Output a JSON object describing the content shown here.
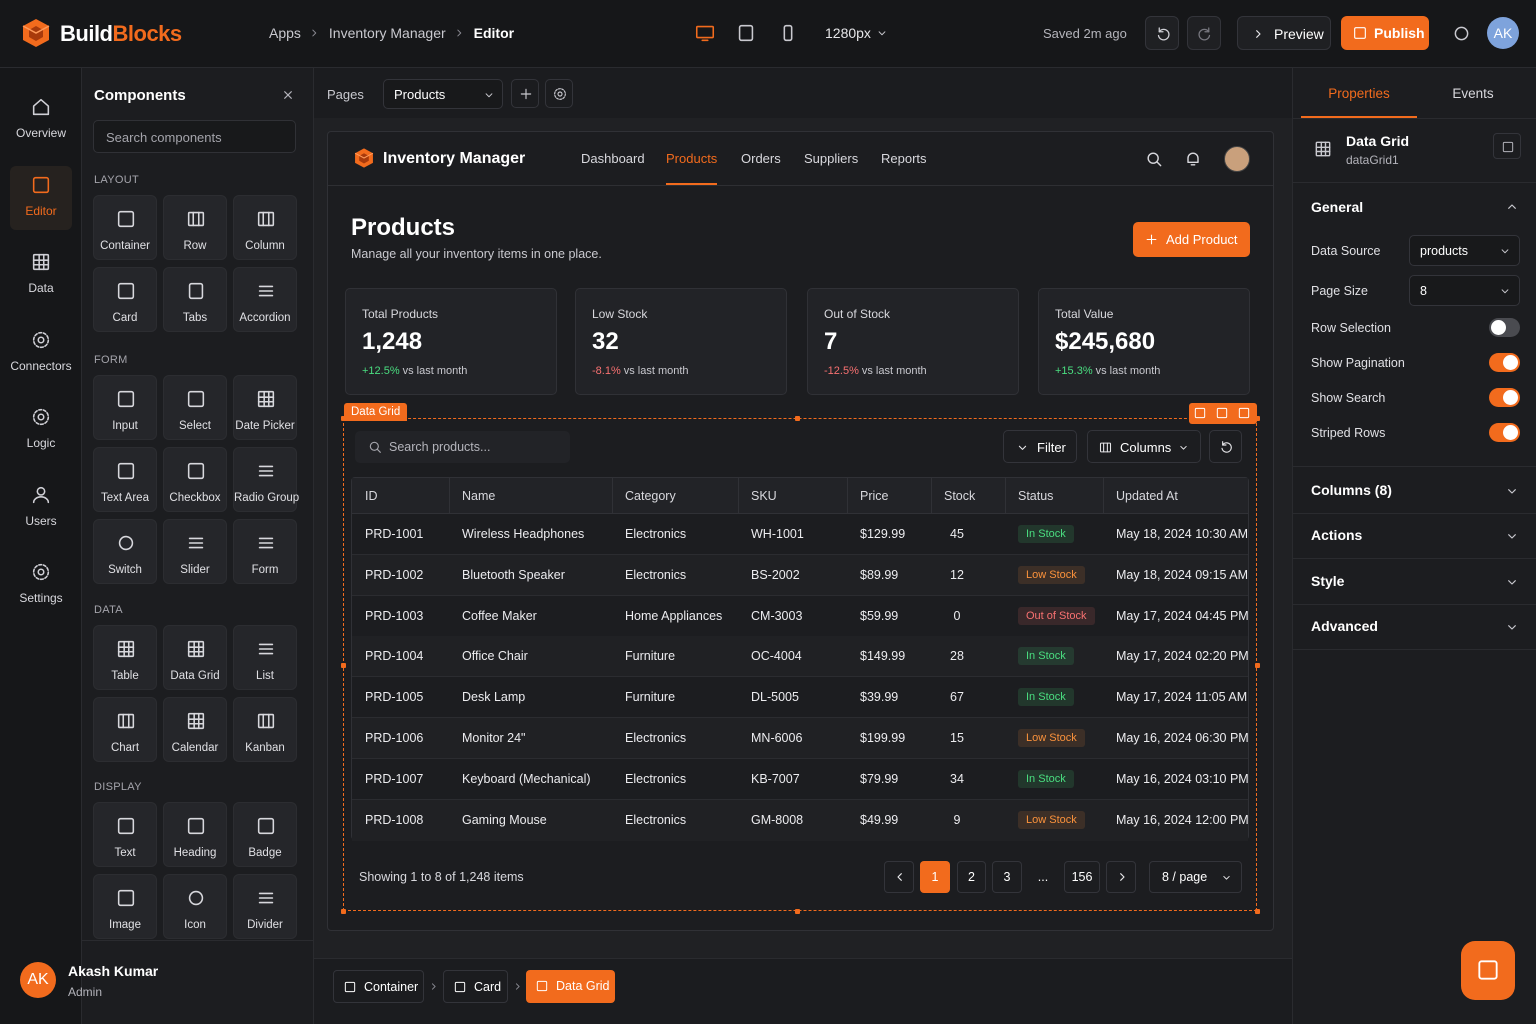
{
  "topbar": {
    "logo_a": "Build",
    "logo_b": "Blocks",
    "breadcrumb": [
      "Apps",
      "Inventory Manager",
      "Editor"
    ],
    "viewport": "1280px",
    "saved": "Saved 2m ago",
    "preview": "Preview",
    "publish": "Publish",
    "avatar": "AK"
  },
  "nav": [
    {
      "label": "Overview"
    },
    {
      "label": "Editor",
      "active": true
    },
    {
      "label": "Data"
    },
    {
      "label": "Connectors"
    },
    {
      "label": "Logic"
    },
    {
      "label": "Users"
    },
    {
      "label": "Settings"
    }
  ],
  "components": {
    "title": "Components",
    "search": "Search components",
    "groups": [
      {
        "name": "LAYOUT",
        "items": [
          "Container",
          "Row",
          "Column",
          "Card",
          "Tabs",
          "Accordion"
        ]
      },
      {
        "name": "FORM",
        "items": [
          "Input",
          "Select",
          "Date Picker",
          "Text Area",
          "Checkbox",
          "Radio Group",
          "Switch",
          "Slider",
          "Form"
        ]
      },
      {
        "name": "DATA",
        "items": [
          "Table",
          "Data Grid",
          "List",
          "Chart",
          "Calendar",
          "Kanban"
        ]
      },
      {
        "name": "DISPLAY",
        "items": [
          "Text",
          "Heading",
          "Badge",
          "Image",
          "Icon",
          "Divider"
        ]
      }
    ]
  },
  "user": {
    "initials": "AK",
    "name": "Akash Kumar",
    "role": "Admin"
  },
  "canvas_toolbar": {
    "pages": "Pages",
    "page": "Products"
  },
  "app": {
    "title": "Inventory Manager",
    "tabs": [
      {
        "label": "Dashboard"
      },
      {
        "label": "Products",
        "active": true
      },
      {
        "label": "Orders"
      },
      {
        "label": "Suppliers"
      },
      {
        "label": "Reports"
      }
    ]
  },
  "page": {
    "title": "Products",
    "subtitle": "Manage all your inventory items in one place.",
    "add": "Add Product"
  },
  "stats": [
    {
      "label": "Total Products",
      "value": "1,248",
      "change": "+12.5%",
      "note": "vs last month",
      "trend": "up"
    },
    {
      "label": "Low Stock",
      "value": "32",
      "change": "-8.1%",
      "note": "vs last month",
      "trend": "down"
    },
    {
      "label": "Out of Stock",
      "value": "7",
      "change": "-12.5%",
      "note": "vs last month",
      "trend": "down"
    },
    {
      "label": "Total Value",
      "value": "$245,680",
      "change": "+15.3%",
      "note": "vs last month",
      "trend": "up"
    }
  ],
  "grid": {
    "tag": "Data Grid",
    "search": "Search products...",
    "filter": "Filter",
    "columns_button": "Columns",
    "columns": [
      "ID",
      "Name",
      "Category",
      "SKU",
      "Price",
      "Stock",
      "Status",
      "Updated At"
    ],
    "rows": [
      [
        "PRD-1001",
        "Wireless Headphones",
        "Electronics",
        "WH-1001",
        "$129.99",
        "45",
        "In Stock",
        "May 18, 2024 10:30 AM"
      ],
      [
        "PRD-1002",
        "Bluetooth Speaker",
        "Electronics",
        "BS-2002",
        "$89.99",
        "12",
        "Low Stock",
        "May 18, 2024 09:15 AM"
      ],
      [
        "PRD-1003",
        "Coffee Maker",
        "Home Appliances",
        "CM-3003",
        "$59.99",
        "0",
        "Out of Stock",
        "May 17, 2024 04:45 PM"
      ],
      [
        "PRD-1004",
        "Office Chair",
        "Furniture",
        "OC-4004",
        "$149.99",
        "28",
        "In Stock",
        "May 17, 2024 02:20 PM"
      ],
      [
        "PRD-1005",
        "Desk Lamp",
        "Furniture",
        "DL-5005",
        "$39.99",
        "67",
        "In Stock",
        "May 17, 2024 11:05 AM"
      ],
      [
        "PRD-1006",
        "Monitor 24\"",
        "Electronics",
        "MN-6006",
        "$199.99",
        "15",
        "Low Stock",
        "May 16, 2024 06:30 PM"
      ],
      [
        "PRD-1007",
        "Keyboard (Mechanical)",
        "Electronics",
        "KB-7007",
        "$79.99",
        "34",
        "In Stock",
        "May 16, 2024 03:10 PM"
      ],
      [
        "PRD-1008",
        "Gaming Mouse",
        "Electronics",
        "GM-8008",
        "$49.99",
        "9",
        "Low Stock",
        "May 16, 2024 12:00 PM"
      ]
    ],
    "status_colors": {
      "In Stock": "#4ade80",
      "Low Stock": "#fb923c",
      "Out of Stock": "#f87171"
    },
    "footer": "Showing 1 to 8 of 1,248 items",
    "pages": [
      "1",
      "2",
      "3",
      "...",
      "156"
    ],
    "current_page": "1",
    "per_page": "8 / page"
  },
  "properties": {
    "tabs": [
      "Properties",
      "Events"
    ],
    "component": "Data Grid",
    "id": "dataGrid1",
    "general": "General",
    "fields": [
      {
        "label": "Data Source",
        "value": "products"
      },
      {
        "label": "Page Size",
        "value": "8"
      }
    ],
    "toggles": [
      {
        "label": "Row Selection",
        "on": false
      },
      {
        "label": "Show Pagination",
        "on": true
      },
      {
        "label": "Show Search",
        "on": true
      },
      {
        "label": "Striped Rows",
        "on": true
      }
    ],
    "sections": [
      "Columns (8)",
      "Actions",
      "Style",
      "Advanced"
    ]
  },
  "breadcrumb": [
    "Container",
    "Card",
    "Data Grid"
  ]
}
